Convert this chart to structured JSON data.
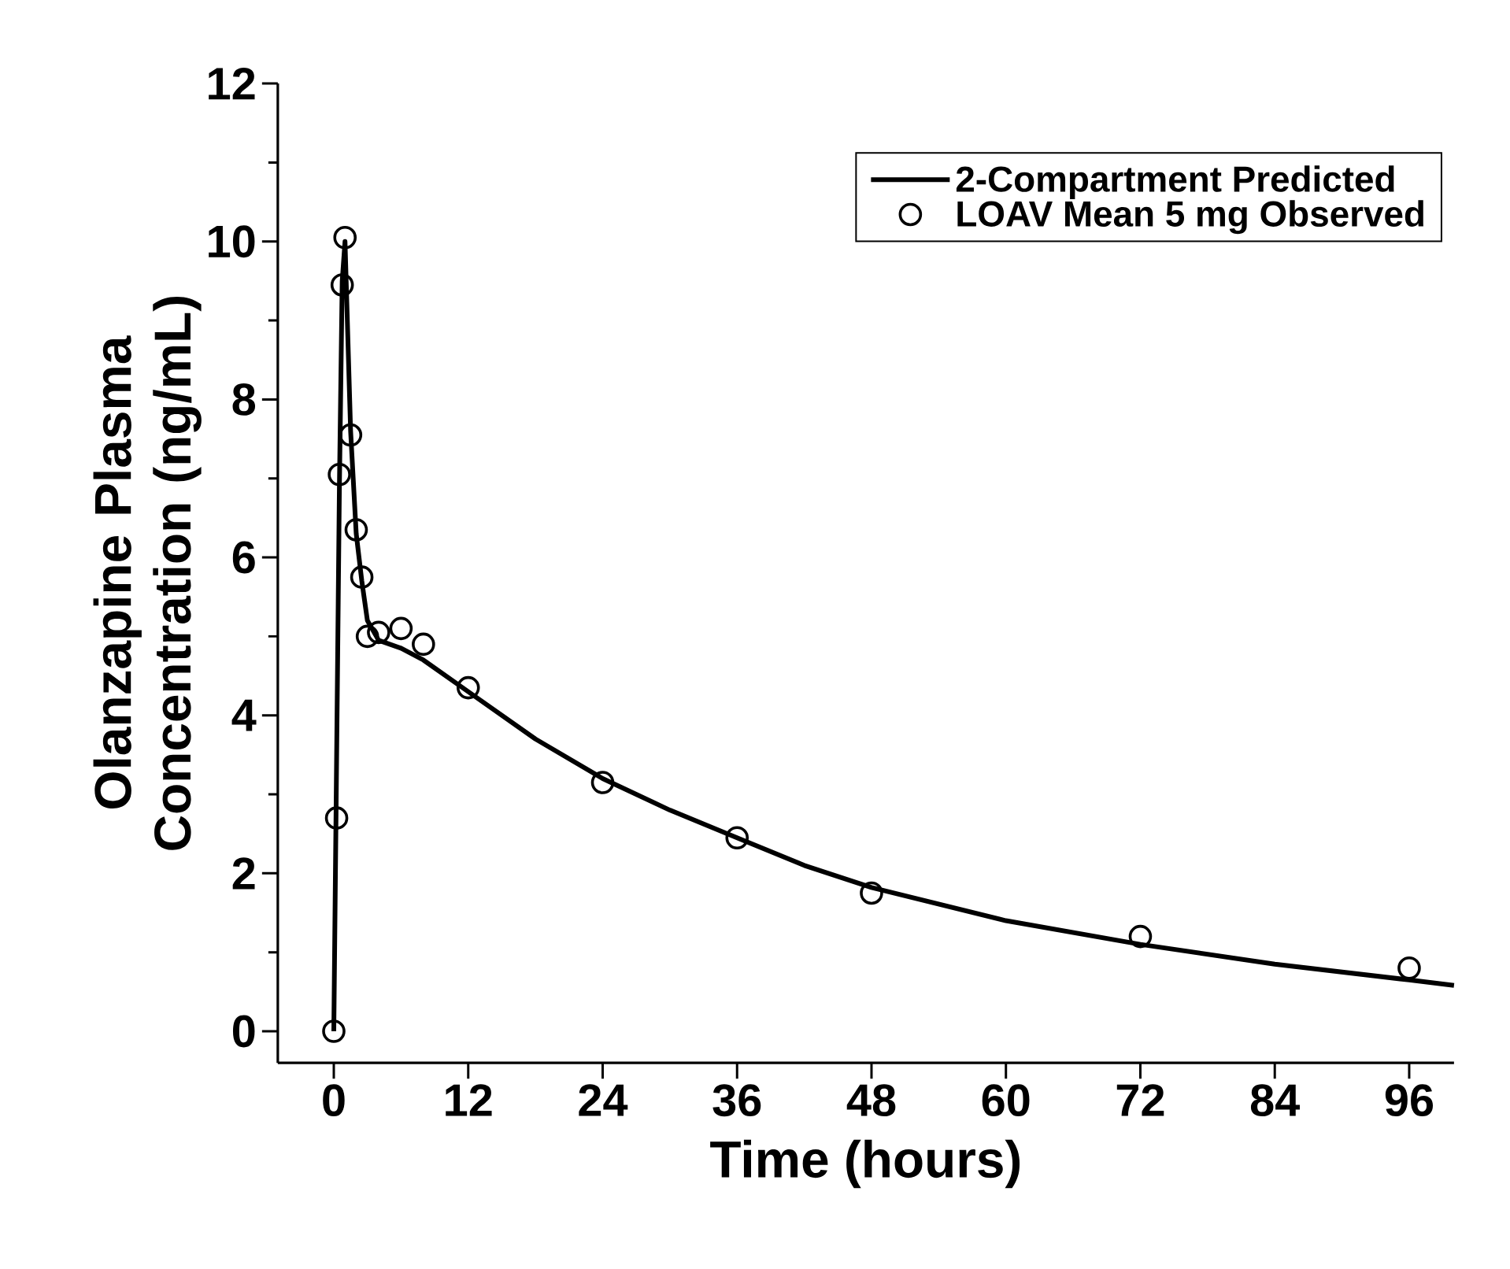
{
  "chart_data": {
    "type": "line",
    "xlabel": "Time (hours)",
    "ylabel": "Olanzapine Plasma Concentration (ng/mL)",
    "xlim": [
      -5,
      100
    ],
    "ylim": [
      -0.4,
      12
    ],
    "xticks": [
      0,
      12,
      24,
      36,
      48,
      60,
      72,
      84,
      96
    ],
    "yticks": [
      0,
      2,
      4,
      6,
      8,
      10,
      12
    ],
    "legend": "top right",
    "grid": false,
    "series": [
      {
        "name": "2-Compartment Predicted",
        "color": "#000000",
        "marker": "none",
        "line_style": "solid",
        "x": [
          0,
          0.5,
          0.75,
          1,
          1.5,
          2,
          2.5,
          3,
          4,
          6,
          8,
          12,
          18,
          24,
          30,
          36,
          42,
          48,
          60,
          72,
          84,
          96,
          100
        ],
        "values": [
          0,
          6.9,
          9.5,
          10,
          7.6,
          6.3,
          5.7,
          5.2,
          4.95,
          4.85,
          4.7,
          4.3,
          3.7,
          3.2,
          2.8,
          2.45,
          2.1,
          1.82,
          1.4,
          1.1,
          0.85,
          0.65,
          0.58
        ]
      },
      {
        "name": "LOAV Mean 5 mg Observed",
        "type": "scatter",
        "color": "#000000",
        "marker": "circle",
        "x": [
          0,
          0.25,
          0.5,
          0.75,
          1,
          1.5,
          2,
          2.5,
          3,
          4,
          6,
          8,
          12,
          24,
          36,
          48,
          72,
          96
        ],
        "values": [
          0,
          2.7,
          7.05,
          9.45,
          10.05,
          7.55,
          6.35,
          5.75,
          5.0,
          5.05,
          5.1,
          4.9,
          4.35,
          3.15,
          2.45,
          1.75,
          1.2,
          0.8
        ]
      }
    ]
  }
}
